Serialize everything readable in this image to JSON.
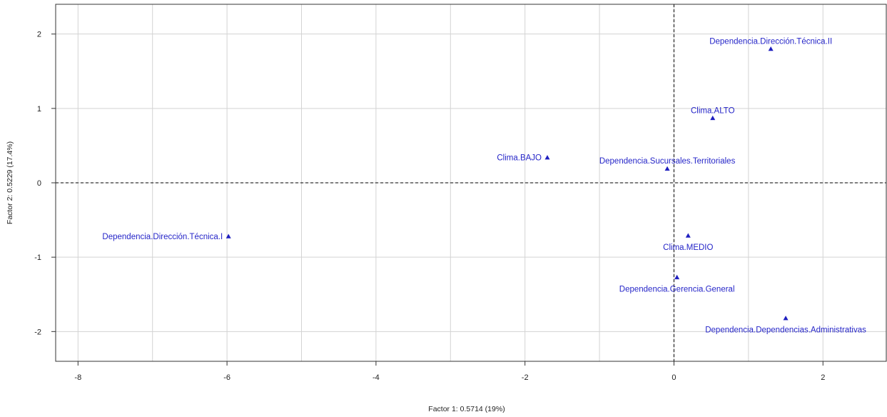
{
  "chart_data": {
    "type": "scatter",
    "xlabel": "Factor 1: 0.5714 (19%)",
    "ylabel": "Factor 2: 0.5229 (17.4%)",
    "xlim": [
      -8.3,
      2.85
    ],
    "ylim": [
      -2.4,
      2.4
    ],
    "x_ticks": [
      -8,
      -6,
      -4,
      -2,
      0,
      2
    ],
    "y_ticks": [
      -2,
      -1,
      0,
      1,
      2
    ],
    "x_tick_labels": [
      "-8",
      "-6",
      "-4",
      "-2",
      "0",
      "2"
    ],
    "y_tick_labels": [
      "-2",
      "-1",
      "0",
      "1",
      "2"
    ],
    "x_gridlines": [
      -8,
      -7,
      -6,
      -5,
      -4,
      -3,
      -2,
      -1,
      0,
      1,
      2
    ],
    "y_gridlines": [
      -2,
      -1,
      0,
      1,
      2
    ],
    "grid": true,
    "reference_lines": {
      "x": 0,
      "y": 0,
      "style": "dashed"
    },
    "marker": "triangle",
    "point_color": "#1f1fbf",
    "label_color": "#2525c8",
    "points": [
      {
        "label": "Dependencia.Dirección.Técnica.II",
        "x": 1.3,
        "y": 1.8,
        "label_pos": "above"
      },
      {
        "label": "Clima.ALTO",
        "x": 0.52,
        "y": 0.87,
        "label_pos": "above"
      },
      {
        "label": "Clima.BAJO",
        "x": -1.7,
        "y": 0.34,
        "label_pos": "left"
      },
      {
        "label": "Dependencia.Sucursales.Territoriales",
        "x": -0.09,
        "y": 0.19,
        "label_pos": "above"
      },
      {
        "label": "Dependencia.Dirección.Técnica.I",
        "x": -5.98,
        "y": -0.72,
        "label_pos": "left"
      },
      {
        "label": "Clima.MEDIO",
        "x": 0.19,
        "y": -0.71,
        "label_pos": "below"
      },
      {
        "label": "Dependencia.Gerencia.General",
        "x": 0.04,
        "y": -1.27,
        "label_pos": "below"
      },
      {
        "label": "Dependencia.Dependencias.Administrativas",
        "x": 1.5,
        "y": -1.82,
        "label_pos": "below"
      }
    ]
  }
}
